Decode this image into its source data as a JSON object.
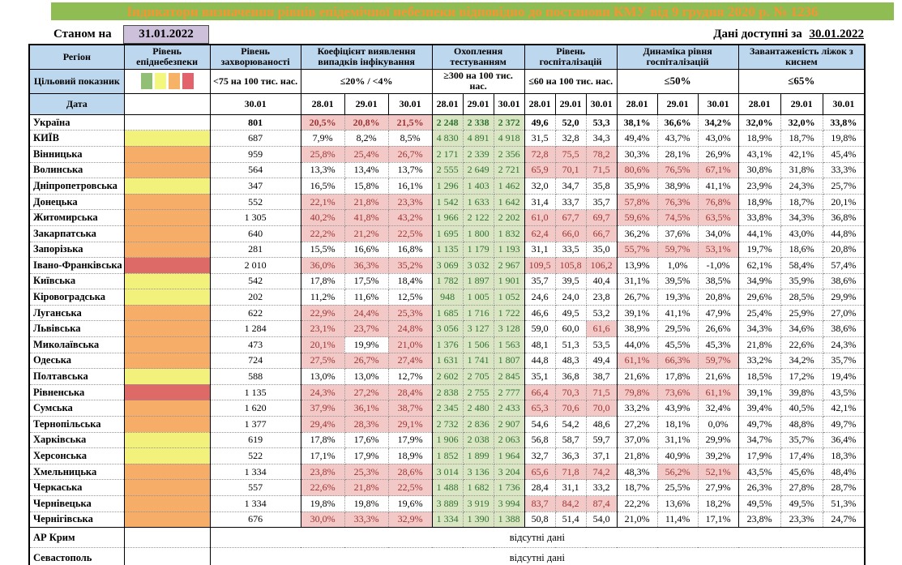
{
  "title": "Індикатори визначення рівнів епідемічної небезпеки відповідно до постанови КМУ від 9 грудня 2020 р. № 1236",
  "meta": {
    "as_of_label": "Станом на",
    "as_of_date": "31.01.2022",
    "available_label": "Дані доступні за",
    "available_date": "30.01.2022"
  },
  "no_data_text": "відсутні дані",
  "colors": {
    "title_bg": "#8FBC53",
    "title_text": "#F79432",
    "header_bg": "#BDD7EE",
    "date_box_bg": "#CCC0DA",
    "flag_red_bg": "#F2C9C6",
    "flag_red_text": "#9C3434",
    "testing_bg": "#D9E5C3",
    "testing_text": "#2F7130",
    "levels": {
      "yellow": "#F2F17C",
      "orange": "#F5AD68",
      "red": "#DE6A68",
      "none": "#FFFFFF"
    }
  },
  "header": {
    "region": "Регіон",
    "target_label": "Цільовий показник",
    "date_label": "Дата",
    "legend_colors": [
      "#90BF75",
      "#F4F77E",
      "#F6B266",
      "#E2636B"
    ],
    "groups": [
      {
        "label": "Рівень епіднебезпеки",
        "target": "",
        "dates": []
      },
      {
        "label": "Рівень захворюваності",
        "target": "<75 на 100 тис. нас.",
        "dates": [
          "30.01"
        ]
      },
      {
        "label": "Коефіцієнт виявлення випадків інфікування",
        "target": "≤20% / <4%",
        "dates": [
          "28.01",
          "29.01",
          "30.01"
        ]
      },
      {
        "label": "Охоплення тестуванням",
        "target": "≥300 на 100 тис. нас.",
        "dates": [
          "28.01",
          "29.01",
          "30.01"
        ]
      },
      {
        "label": "Рівень госпіталізацій",
        "target": "≤60 на 100 тис. нас.",
        "dates": [
          "28.01",
          "29.01",
          "30.01"
        ]
      },
      {
        "label": "Динаміка рівня госпіталізацій",
        "target": "≤50%",
        "dates": [
          "28.01",
          "29.01",
          "30.01"
        ]
      },
      {
        "label": "Завантаженість ліжок з киснем",
        "target": "≤65%",
        "dates": [
          "28.01",
          "29.01",
          "30.01"
        ]
      }
    ]
  },
  "regions": [
    {
      "name": "Україна",
      "level": "none",
      "bold": true,
      "incidence": "801",
      "coef": [
        "20,5%",
        "20,8%",
        "21,5%"
      ],
      "coef_red": [
        true,
        true,
        true
      ],
      "testing": [
        "2 248",
        "2 338",
        "2 372"
      ],
      "hosp": [
        "49,6",
        "52,0",
        "53,3"
      ],
      "hosp_red": [
        false,
        false,
        false
      ],
      "dyn": [
        "38,1%",
        "36,6%",
        "34,2%"
      ],
      "dyn_red": [
        false,
        false,
        false
      ],
      "beds": [
        "32,0%",
        "32,0%",
        "33,8%"
      ]
    },
    {
      "name": "КИЇВ",
      "level": "yellow",
      "incidence": "687",
      "coef": [
        "7,9%",
        "8,2%",
        "8,5%"
      ],
      "coef_red": [
        false,
        false,
        false
      ],
      "testing": [
        "4 830",
        "4 891",
        "4 918"
      ],
      "hosp": [
        "31,5",
        "32,8",
        "34,3"
      ],
      "hosp_red": [
        false,
        false,
        false
      ],
      "dyn": [
        "49,4%",
        "43,7%",
        "43,0%"
      ],
      "dyn_red": [
        false,
        false,
        false
      ],
      "beds": [
        "18,9%",
        "18,7%",
        "19,8%"
      ]
    },
    {
      "name": "Вінницька",
      "level": "orange",
      "incidence": "959",
      "coef": [
        "25,8%",
        "25,4%",
        "26,7%"
      ],
      "coef_red": [
        true,
        true,
        true
      ],
      "testing": [
        "2 171",
        "2 339",
        "2 356"
      ],
      "hosp": [
        "72,8",
        "75,5",
        "78,2"
      ],
      "hosp_red": [
        true,
        true,
        true
      ],
      "dyn": [
        "30,3%",
        "28,1%",
        "26,9%"
      ],
      "dyn_red": [
        false,
        false,
        false
      ],
      "beds": [
        "43,1%",
        "42,1%",
        "45,4%"
      ]
    },
    {
      "name": "Волинська",
      "level": "orange",
      "incidence": "564",
      "coef": [
        "13,3%",
        "13,4%",
        "13,7%"
      ],
      "coef_red": [
        false,
        false,
        false
      ],
      "testing": [
        "2 555",
        "2 649",
        "2 721"
      ],
      "hosp": [
        "65,9",
        "70,1",
        "71,5"
      ],
      "hosp_red": [
        true,
        true,
        true
      ],
      "dyn": [
        "80,6%",
        "76,5%",
        "67,1%"
      ],
      "dyn_red": [
        true,
        true,
        true
      ],
      "beds": [
        "30,8%",
        "31,8%",
        "33,3%"
      ]
    },
    {
      "name": "Дніпропетровська",
      "level": "yellow",
      "incidence": "347",
      "coef": [
        "16,5%",
        "15,8%",
        "16,1%"
      ],
      "coef_red": [
        false,
        false,
        false
      ],
      "testing": [
        "1 296",
        "1 403",
        "1 462"
      ],
      "hosp": [
        "32,0",
        "34,7",
        "35,8"
      ],
      "hosp_red": [
        false,
        false,
        false
      ],
      "dyn": [
        "35,9%",
        "38,9%",
        "41,1%"
      ],
      "dyn_red": [
        false,
        false,
        false
      ],
      "beds": [
        "23,9%",
        "24,3%",
        "25,7%"
      ]
    },
    {
      "name": "Донецька",
      "level": "orange",
      "incidence": "552",
      "coef": [
        "22,1%",
        "21,8%",
        "23,3%"
      ],
      "coef_red": [
        true,
        true,
        true
      ],
      "testing": [
        "1 542",
        "1 633",
        "1 642"
      ],
      "hosp": [
        "31,4",
        "33,7",
        "35,7"
      ],
      "hosp_red": [
        false,
        false,
        false
      ],
      "dyn": [
        "57,8%",
        "76,3%",
        "76,8%"
      ],
      "dyn_red": [
        true,
        true,
        true
      ],
      "beds": [
        "18,9%",
        "18,7%",
        "20,1%"
      ]
    },
    {
      "name": "Житомирська",
      "level": "orange",
      "incidence": "1 305",
      "coef": [
        "40,2%",
        "41,8%",
        "43,2%"
      ],
      "coef_red": [
        true,
        true,
        true
      ],
      "testing": [
        "1 966",
        "2 122",
        "2 202"
      ],
      "hosp": [
        "61,0",
        "67,7",
        "69,7"
      ],
      "hosp_red": [
        true,
        true,
        true
      ],
      "dyn": [
        "59,6%",
        "74,5%",
        "63,5%"
      ],
      "dyn_red": [
        true,
        true,
        true
      ],
      "beds": [
        "33,8%",
        "34,3%",
        "36,8%"
      ]
    },
    {
      "name": "Закарпатська",
      "level": "orange",
      "incidence": "640",
      "coef": [
        "22,2%",
        "21,2%",
        "22,5%"
      ],
      "coef_red": [
        true,
        true,
        true
      ],
      "testing": [
        "1 695",
        "1 800",
        "1 832"
      ],
      "hosp": [
        "62,4",
        "66,0",
        "66,7"
      ],
      "hosp_red": [
        true,
        true,
        true
      ],
      "dyn": [
        "36,2%",
        "37,6%",
        "34,0%"
      ],
      "dyn_red": [
        false,
        false,
        false
      ],
      "beds": [
        "44,1%",
        "43,0%",
        "44,8%"
      ]
    },
    {
      "name": "Запорізька",
      "level": "orange",
      "incidence": "281",
      "coef": [
        "15,5%",
        "16,6%",
        "16,8%"
      ],
      "coef_red": [
        false,
        false,
        false
      ],
      "testing": [
        "1 135",
        "1 179",
        "1 193"
      ],
      "hosp": [
        "31,1",
        "33,5",
        "35,0"
      ],
      "hosp_red": [
        false,
        false,
        false
      ],
      "dyn": [
        "55,7%",
        "59,7%",
        "53,1%"
      ],
      "dyn_red": [
        true,
        true,
        true
      ],
      "beds": [
        "19,7%",
        "18,6%",
        "20,8%"
      ]
    },
    {
      "name": "Івано-Франківська",
      "level": "red",
      "incidence": "2 010",
      "coef": [
        "36,0%",
        "36,3%",
        "35,2%"
      ],
      "coef_red": [
        true,
        true,
        true
      ],
      "testing": [
        "3 069",
        "3 032",
        "2 967"
      ],
      "hosp": [
        "109,5",
        "105,8",
        "106,2"
      ],
      "hosp_red": [
        true,
        true,
        true
      ],
      "dyn": [
        "13,9%",
        "1,0%",
        "-1,0%"
      ],
      "dyn_red": [
        false,
        false,
        false
      ],
      "beds": [
        "62,1%",
        "58,4%",
        "57,4%"
      ]
    },
    {
      "name": "Київська",
      "level": "yellow",
      "incidence": "542",
      "coef": [
        "17,8%",
        "17,5%",
        "18,4%"
      ],
      "coef_red": [
        false,
        false,
        false
      ],
      "testing": [
        "1 782",
        "1 897",
        "1 901"
      ],
      "hosp": [
        "35,7",
        "39,5",
        "40,4"
      ],
      "hosp_red": [
        false,
        false,
        false
      ],
      "dyn": [
        "31,1%",
        "39,5%",
        "38,5%"
      ],
      "dyn_red": [
        false,
        false,
        false
      ],
      "beds": [
        "34,9%",
        "35,9%",
        "38,6%"
      ]
    },
    {
      "name": "Кіровоградська",
      "level": "yellow",
      "incidence": "202",
      "coef": [
        "11,2%",
        "11,6%",
        "12,5%"
      ],
      "coef_red": [
        false,
        false,
        false
      ],
      "testing": [
        "948",
        "1 005",
        "1 052"
      ],
      "hosp": [
        "24,6",
        "24,0",
        "23,8"
      ],
      "hosp_red": [
        false,
        false,
        false
      ],
      "dyn": [
        "26,7%",
        "19,3%",
        "20,8%"
      ],
      "dyn_red": [
        false,
        false,
        false
      ],
      "beds": [
        "29,6%",
        "28,5%",
        "29,9%"
      ]
    },
    {
      "name": "Луганська",
      "level": "orange",
      "incidence": "622",
      "coef": [
        "22,9%",
        "24,4%",
        "25,3%"
      ],
      "coef_red": [
        true,
        true,
        true
      ],
      "testing": [
        "1 685",
        "1 716",
        "1 722"
      ],
      "hosp": [
        "46,6",
        "49,5",
        "53,2"
      ],
      "hosp_red": [
        false,
        false,
        false
      ],
      "dyn": [
        "39,1%",
        "41,1%",
        "47,9%"
      ],
      "dyn_red": [
        false,
        false,
        false
      ],
      "beds": [
        "25,4%",
        "25,9%",
        "27,0%"
      ]
    },
    {
      "name": "Львівська",
      "level": "orange",
      "incidence": "1 284",
      "coef": [
        "23,1%",
        "23,7%",
        "24,8%"
      ],
      "coef_red": [
        true,
        true,
        true
      ],
      "testing": [
        "3 056",
        "3 127",
        "3 128"
      ],
      "hosp": [
        "59,0",
        "60,0",
        "61,6"
      ],
      "hosp_red": [
        false,
        false,
        true
      ],
      "dyn": [
        "38,9%",
        "29,5%",
        "26,6%"
      ],
      "dyn_red": [
        false,
        false,
        false
      ],
      "beds": [
        "34,3%",
        "34,6%",
        "38,6%"
      ]
    },
    {
      "name": "Миколаївська",
      "level": "orange",
      "incidence": "473",
      "coef": [
        "20,1%",
        "19,9%",
        "21,0%"
      ],
      "coef_red": [
        true,
        false,
        true
      ],
      "testing": [
        "1 376",
        "1 506",
        "1 563"
      ],
      "hosp": [
        "48,1",
        "51,3",
        "53,5"
      ],
      "hosp_red": [
        false,
        false,
        false
      ],
      "dyn": [
        "44,0%",
        "45,5%",
        "45,3%"
      ],
      "dyn_red": [
        false,
        false,
        false
      ],
      "beds": [
        "21,8%",
        "22,6%",
        "24,3%"
      ]
    },
    {
      "name": "Одеська",
      "level": "orange",
      "incidence": "724",
      "coef": [
        "27,5%",
        "26,7%",
        "27,4%"
      ],
      "coef_red": [
        true,
        true,
        true
      ],
      "testing": [
        "1 631",
        "1 741",
        "1 807"
      ],
      "hosp": [
        "44,8",
        "48,3",
        "49,4"
      ],
      "hosp_red": [
        false,
        false,
        false
      ],
      "dyn": [
        "61,1%",
        "66,3%",
        "59,7%"
      ],
      "dyn_red": [
        true,
        true,
        true
      ],
      "beds": [
        "33,2%",
        "34,2%",
        "35,7%"
      ]
    },
    {
      "name": "Полтавська",
      "level": "yellow",
      "incidence": "588",
      "coef": [
        "13,0%",
        "13,0%",
        "12,7%"
      ],
      "coef_red": [
        false,
        false,
        false
      ],
      "testing": [
        "2 602",
        "2 705",
        "2 845"
      ],
      "hosp": [
        "35,1",
        "36,8",
        "38,7"
      ],
      "hosp_red": [
        false,
        false,
        false
      ],
      "dyn": [
        "21,6%",
        "17,8%",
        "21,6%"
      ],
      "dyn_red": [
        false,
        false,
        false
      ],
      "beds": [
        "18,5%",
        "17,2%",
        "19,4%"
      ]
    },
    {
      "name": "Рівненська",
      "level": "red",
      "incidence": "1 135",
      "coef": [
        "24,3%",
        "27,2%",
        "28,4%"
      ],
      "coef_red": [
        true,
        true,
        true
      ],
      "testing": [
        "2 838",
        "2 755",
        "2 777"
      ],
      "hosp": [
        "66,4",
        "70,3",
        "71,5"
      ],
      "hosp_red": [
        true,
        true,
        true
      ],
      "dyn": [
        "79,8%",
        "73,6%",
        "61,1%"
      ],
      "dyn_red": [
        true,
        true,
        true
      ],
      "beds": [
        "39,1%",
        "39,8%",
        "43,5%"
      ]
    },
    {
      "name": "Сумська",
      "level": "orange",
      "incidence": "1 620",
      "coef": [
        "37,9%",
        "36,1%",
        "38,7%"
      ],
      "coef_red": [
        true,
        true,
        true
      ],
      "testing": [
        "2 345",
        "2 480",
        "2 433"
      ],
      "hosp": [
        "65,3",
        "70,6",
        "70,0"
      ],
      "hosp_red": [
        true,
        true,
        true
      ],
      "dyn": [
        "33,2%",
        "43,9%",
        "32,4%"
      ],
      "dyn_red": [
        false,
        false,
        false
      ],
      "beds": [
        "39,4%",
        "40,5%",
        "42,1%"
      ]
    },
    {
      "name": "Тернопільська",
      "level": "orange",
      "incidence": "1 377",
      "coef": [
        "29,4%",
        "28,3%",
        "29,1%"
      ],
      "coef_red": [
        true,
        true,
        true
      ],
      "testing": [
        "2 732",
        "2 836",
        "2 907"
      ],
      "hosp": [
        "54,6",
        "54,2",
        "48,6"
      ],
      "hosp_red": [
        false,
        false,
        false
      ],
      "dyn": [
        "27,2%",
        "18,1%",
        "0,0%"
      ],
      "dyn_red": [
        false,
        false,
        false
      ],
      "beds": [
        "49,7%",
        "48,8%",
        "49,7%"
      ]
    },
    {
      "name": "Харківська",
      "level": "yellow",
      "incidence": "619",
      "coef": [
        "17,8%",
        "17,6%",
        "17,9%"
      ],
      "coef_red": [
        false,
        false,
        false
      ],
      "testing": [
        "1 906",
        "2 038",
        "2 063"
      ],
      "hosp": [
        "56,8",
        "58,7",
        "59,7"
      ],
      "hosp_red": [
        false,
        false,
        false
      ],
      "dyn": [
        "37,0%",
        "31,1%",
        "29,9%"
      ],
      "dyn_red": [
        false,
        false,
        false
      ],
      "beds": [
        "34,7%",
        "35,7%",
        "36,4%"
      ]
    },
    {
      "name": "Херсонська",
      "level": "yellow",
      "incidence": "522",
      "coef": [
        "17,1%",
        "17,9%",
        "18,9%"
      ],
      "coef_red": [
        false,
        false,
        false
      ],
      "testing": [
        "1 852",
        "1 899",
        "1 964"
      ],
      "hosp": [
        "32,7",
        "36,3",
        "37,1"
      ],
      "hosp_red": [
        false,
        false,
        false
      ],
      "dyn": [
        "21,8%",
        "40,9%",
        "39,2%"
      ],
      "dyn_red": [
        false,
        false,
        false
      ],
      "beds": [
        "17,9%",
        "17,4%",
        "18,3%"
      ]
    },
    {
      "name": "Хмельницька",
      "level": "orange",
      "incidence": "1 334",
      "coef": [
        "23,8%",
        "25,3%",
        "28,6%"
      ],
      "coef_red": [
        true,
        true,
        true
      ],
      "testing": [
        "3 014",
        "3 136",
        "3 204"
      ],
      "hosp": [
        "65,6",
        "71,8",
        "74,2"
      ],
      "hosp_red": [
        true,
        true,
        true
      ],
      "dyn": [
        "48,3%",
        "56,2%",
        "52,1%"
      ],
      "dyn_red": [
        false,
        true,
        true
      ],
      "beds": [
        "43,5%",
        "45,6%",
        "48,4%"
      ]
    },
    {
      "name": "Черкаська",
      "level": "orange",
      "incidence": "557",
      "coef": [
        "22,6%",
        "21,8%",
        "22,5%"
      ],
      "coef_red": [
        true,
        true,
        true
      ],
      "testing": [
        "1 488",
        "1 682",
        "1 736"
      ],
      "hosp": [
        "28,4",
        "31,1",
        "33,2"
      ],
      "hosp_red": [
        false,
        false,
        false
      ],
      "dyn": [
        "18,7%",
        "25,5%",
        "27,9%"
      ],
      "dyn_red": [
        false,
        false,
        false
      ],
      "beds": [
        "26,3%",
        "27,8%",
        "28,7%"
      ]
    },
    {
      "name": "Чернівецька",
      "level": "orange",
      "incidence": "1 334",
      "coef": [
        "19,8%",
        "19,8%",
        "19,6%"
      ],
      "coef_red": [
        false,
        false,
        false
      ],
      "testing": [
        "3 889",
        "3 919",
        "3 994"
      ],
      "hosp": [
        "83,7",
        "84,2",
        "87,4"
      ],
      "hosp_red": [
        true,
        true,
        true
      ],
      "dyn": [
        "22,2%",
        "13,6%",
        "18,2%"
      ],
      "dyn_red": [
        false,
        false,
        false
      ],
      "beds": [
        "49,5%",
        "49,5%",
        "51,3%"
      ]
    },
    {
      "name": "Чернігівська",
      "level": "orange",
      "incidence": "676",
      "coef": [
        "30,0%",
        "33,3%",
        "32,9%"
      ],
      "coef_red": [
        true,
        true,
        true
      ],
      "testing": [
        "1 334",
        "1 390",
        "1 388"
      ],
      "hosp": [
        "50,8",
        "51,4",
        "54,0"
      ],
      "hosp_red": [
        false,
        false,
        false
      ],
      "dyn": [
        "21,0%",
        "11,4%",
        "17,1%"
      ],
      "dyn_red": [
        false,
        false,
        false
      ],
      "beds": [
        "23,8%",
        "23,3%",
        "24,7%"
      ]
    },
    {
      "name": "АР Крим",
      "level": "none",
      "no_data": true
    },
    {
      "name": "Севастополь",
      "level": "none",
      "no_data": true
    }
  ]
}
